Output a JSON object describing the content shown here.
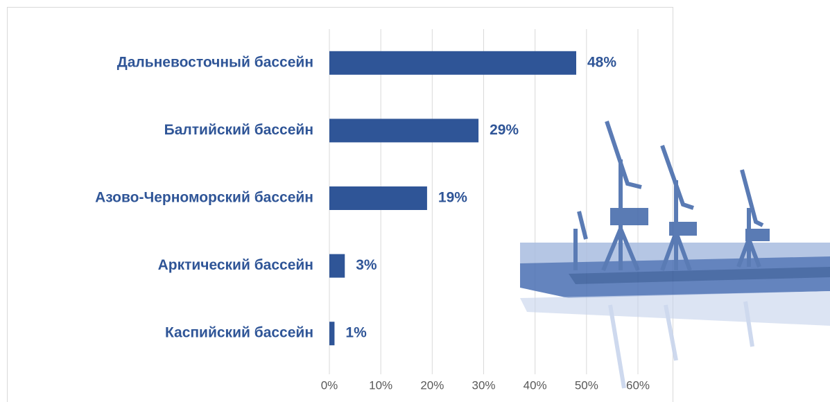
{
  "chart_data": {
    "type": "bar",
    "orientation": "horizontal",
    "categories": [
      "Дальневосточный бассейн",
      "Балтийский бассейн",
      "Азово-Черноморский бассейн",
      "Арктический бассейн",
      "Каспийский бассейн"
    ],
    "values": [
      48,
      29,
      19,
      3,
      1
    ],
    "value_labels": [
      "48%",
      "29%",
      "19%",
      "3%",
      "1%"
    ],
    "color": "#2f5597",
    "xlim": [
      0,
      60
    ],
    "xticks": [
      {
        "value": 0,
        "label": "0%"
      },
      {
        "value": 10,
        "label": "10%"
      },
      {
        "value": 20,
        "label": "20%"
      },
      {
        "value": 30,
        "label": "30%"
      },
      {
        "value": 40,
        "label": "40%"
      },
      {
        "value": 50,
        "label": "50%"
      },
      {
        "value": 60,
        "label": "60%"
      }
    ],
    "grid": true
  }
}
